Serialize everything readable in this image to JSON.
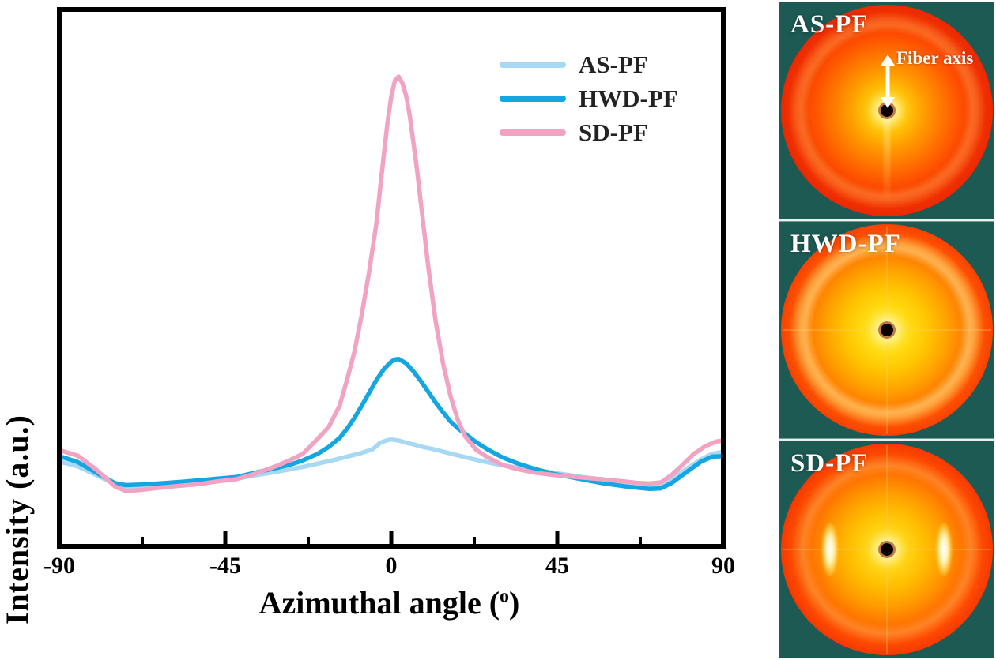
{
  "chart": {
    "ylabel": "Intensity (a.u.)",
    "xlabel_prefix": "Azimuthal angle (",
    "xlabel_sup": "o",
    "xlabel_suffix": ")"
  },
  "chart_data": {
    "type": "line",
    "title": "",
    "xlabel": "Azimuthal angle (deg)",
    "ylabel": "Intensity (a.u.)",
    "x_range": [
      -90,
      90
    ],
    "x_ticks": [
      -90,
      -45,
      0,
      45,
      90
    ],
    "x_minor_ticks": [
      -67.5,
      -22.5,
      22.5,
      67.5
    ],
    "y_range": [
      0,
      1
    ],
    "grid": false,
    "legend_position": "upper-right-inside",
    "frame_color": "#000000",
    "series": [
      {
        "name": "AS-PF",
        "color": "#a8d9f4",
        "points": [
          [
            -90,
            0.158
          ],
          [
            -85,
            0.149
          ],
          [
            -80,
            0.133
          ],
          [
            -75,
            0.116
          ],
          [
            -72,
            0.111
          ],
          [
            -68,
            0.112
          ],
          [
            -63,
            0.114
          ],
          [
            -57,
            0.117
          ],
          [
            -52,
            0.12
          ],
          [
            -47,
            0.123
          ],
          [
            -42,
            0.126
          ],
          [
            -37,
            0.132
          ],
          [
            -31,
            0.139
          ],
          [
            -27,
            0.144
          ],
          [
            -24,
            0.148
          ],
          [
            -20,
            0.154
          ],
          [
            -16,
            0.16
          ],
          [
            -12,
            0.167
          ],
          [
            -8,
            0.174
          ],
          [
            -5,
            0.181
          ],
          [
            -3,
            0.193
          ],
          [
            -1,
            0.198
          ],
          [
            0,
            0.199
          ],
          [
            2,
            0.197
          ],
          [
            4,
            0.193
          ],
          [
            6,
            0.19
          ],
          [
            8,
            0.186
          ],
          [
            12,
            0.18
          ],
          [
            16,
            0.173
          ],
          [
            20,
            0.166
          ],
          [
            25,
            0.158
          ],
          [
            30,
            0.151
          ],
          [
            35,
            0.146
          ],
          [
            40,
            0.141
          ],
          [
            46,
            0.135
          ],
          [
            52,
            0.129
          ],
          [
            58,
            0.124
          ],
          [
            63,
            0.12
          ],
          [
            67,
            0.116
          ],
          [
            70,
            0.114
          ],
          [
            73,
            0.115
          ],
          [
            76,
            0.126
          ],
          [
            80,
            0.144
          ],
          [
            84,
            0.162
          ],
          [
            87,
            0.172
          ],
          [
            90,
            0.176
          ]
        ]
      },
      {
        "name": "HWD-PF",
        "color": "#14a6e2",
        "points": [
          [
            -90,
            0.168
          ],
          [
            -85,
            0.157
          ],
          [
            -80,
            0.137
          ],
          [
            -75,
            0.118
          ],
          [
            -72,
            0.114
          ],
          [
            -68,
            0.115
          ],
          [
            -63,
            0.117
          ],
          [
            -57,
            0.12
          ],
          [
            -52,
            0.123
          ],
          [
            -47,
            0.126
          ],
          [
            -42,
            0.129
          ],
          [
            -37,
            0.137
          ],
          [
            -31,
            0.146
          ],
          [
            -27,
            0.153
          ],
          [
            -24,
            0.16
          ],
          [
            -20,
            0.172
          ],
          [
            -17,
            0.185
          ],
          [
            -14,
            0.202
          ],
          [
            -12,
            0.219
          ],
          [
            -10,
            0.239
          ],
          [
            -8,
            0.262
          ],
          [
            -6,
            0.286
          ],
          [
            -4,
            0.31
          ],
          [
            -2,
            0.33
          ],
          [
            0,
            0.344
          ],
          [
            1,
            0.348
          ],
          [
            2,
            0.349
          ],
          [
            4,
            0.341
          ],
          [
            6,
            0.326
          ],
          [
            8,
            0.308
          ],
          [
            10,
            0.288
          ],
          [
            12,
            0.268
          ],
          [
            14,
            0.25
          ],
          [
            16,
            0.233
          ],
          [
            18,
            0.22
          ],
          [
            20,
            0.21
          ],
          [
            23,
            0.194
          ],
          [
            26,
            0.181
          ],
          [
            30,
            0.166
          ],
          [
            34,
            0.155
          ],
          [
            39,
            0.144
          ],
          [
            44,
            0.135
          ],
          [
            50,
            0.127
          ],
          [
            57,
            0.118
          ],
          [
            63,
            0.112
          ],
          [
            67,
            0.109
          ],
          [
            70,
            0.107
          ],
          [
            73,
            0.108
          ],
          [
            76,
            0.118
          ],
          [
            80,
            0.138
          ],
          [
            84,
            0.158
          ],
          [
            87,
            0.167
          ],
          [
            90,
            0.168
          ]
        ]
      },
      {
        "name": "SD-PF",
        "color": "#f2a3c4",
        "points": [
          [
            -90,
            0.179
          ],
          [
            -85,
            0.169
          ],
          [
            -80,
            0.143
          ],
          [
            -75,
            0.112
          ],
          [
            -72,
            0.103
          ],
          [
            -68,
            0.105
          ],
          [
            -63,
            0.109
          ],
          [
            -57,
            0.113
          ],
          [
            -52,
            0.116
          ],
          [
            -47,
            0.121
          ],
          [
            -42,
            0.125
          ],
          [
            -37,
            0.135
          ],
          [
            -31,
            0.15
          ],
          [
            -27,
            0.162
          ],
          [
            -24,
            0.172
          ],
          [
            -20,
            0.2
          ],
          [
            -17,
            0.222
          ],
          [
            -14,
            0.262
          ],
          [
            -12,
            0.31
          ],
          [
            -10,
            0.362
          ],
          [
            -8,
            0.432
          ],
          [
            -6,
            0.512
          ],
          [
            -4,
            0.603
          ],
          [
            -3,
            0.668
          ],
          [
            -2,
            0.731
          ],
          [
            -1,
            0.79
          ],
          [
            0,
            0.838
          ],
          [
            1,
            0.868
          ],
          [
            2,
            0.875
          ],
          [
            3,
            0.863
          ],
          [
            4,
            0.84
          ],
          [
            5,
            0.803
          ],
          [
            6,
            0.752
          ],
          [
            7,
            0.7
          ],
          [
            8,
            0.641
          ],
          [
            10,
            0.522
          ],
          [
            12,
            0.42
          ],
          [
            14,
            0.342
          ],
          [
            16,
            0.281
          ],
          [
            18,
            0.236
          ],
          [
            20,
            0.205
          ],
          [
            23,
            0.18
          ],
          [
            26,
            0.166
          ],
          [
            30,
            0.152
          ],
          [
            34,
            0.144
          ],
          [
            39,
            0.137
          ],
          [
            44,
            0.133
          ],
          [
            50,
            0.129
          ],
          [
            57,
            0.125
          ],
          [
            63,
            0.121
          ],
          [
            67,
            0.118
          ],
          [
            70,
            0.117
          ],
          [
            73,
            0.119
          ],
          [
            76,
            0.133
          ],
          [
            79,
            0.152
          ],
          [
            82,
            0.172
          ],
          [
            85,
            0.186
          ],
          [
            88,
            0.195
          ],
          [
            90,
            0.197
          ]
        ]
      }
    ]
  },
  "legend": {
    "items": [
      {
        "label": "AS-PF",
        "color": "#a8d9f4"
      },
      {
        "label": "HWD-PF",
        "color": "#14a6e2"
      },
      {
        "label": "SD-PF",
        "color": "#f2a3c4"
      }
    ]
  },
  "panel": {
    "background_color": "#1d5a54",
    "tiles": [
      {
        "label": "AS-PF",
        "annotation": "Fiber axis"
      },
      {
        "label": "HWD-PF"
      },
      {
        "label": "SD-PF"
      }
    ]
  }
}
